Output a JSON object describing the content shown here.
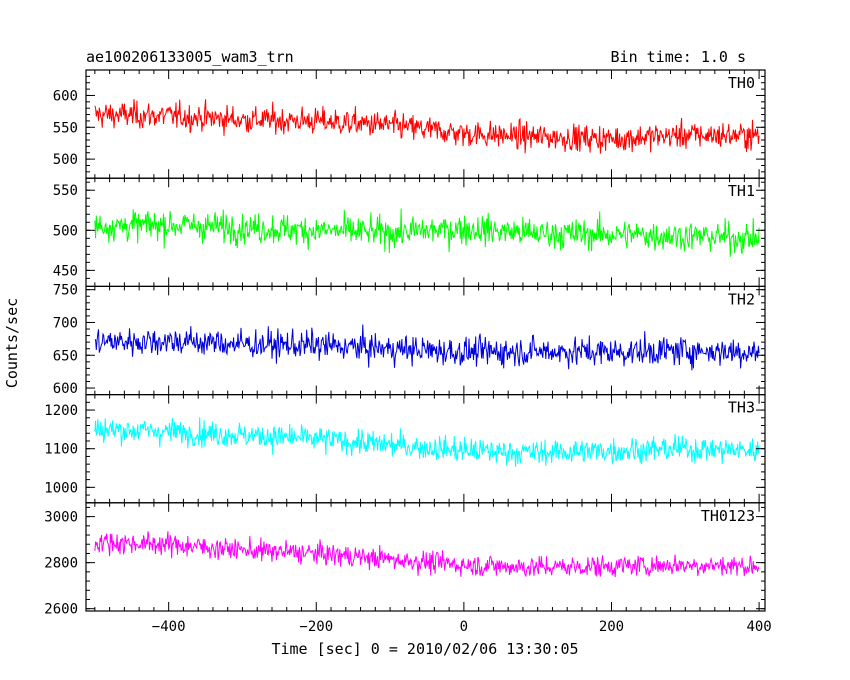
{
  "chart_data": {
    "type": "line",
    "title": "ae100206133005_wam3_trn",
    "subtitle": "Bin time: 1.0 s",
    "xlabel": "Time [sec] 0 = 2010/02/06 13:30:05",
    "ylabel": "Counts/sec",
    "xlim": [
      -512,
      408
    ],
    "x_ticks": [
      -400,
      -200,
      0,
      200,
      400
    ],
    "x_tick_labels": [
      "−400",
      "−200",
      "0",
      "200",
      "400"
    ],
    "x_range": [
      -500,
      400
    ],
    "bin_time_s": 1.0,
    "panels": [
      {
        "name": "TH0",
        "color": "#ff0000",
        "ylim": [
          470,
          640
        ],
        "y_ticks": [
          500,
          550,
          600
        ],
        "y_tick_labels": [
          "500",
          "550",
          "600"
        ],
        "trend": [
          [
            -500,
            570
          ],
          [
            -400,
            568
          ],
          [
            -300,
            562
          ],
          [
            -200,
            560
          ],
          [
            -100,
            553
          ],
          [
            0,
            540
          ],
          [
            100,
            535
          ],
          [
            200,
            532
          ],
          [
            300,
            538
          ],
          [
            400,
            537
          ]
        ],
        "noise": 27
      },
      {
        "name": "TH1",
        "color": "#00ff00",
        "ylim": [
          430,
          565
        ],
        "y_ticks": [
          450,
          500,
          550
        ],
        "y_tick_labels": [
          "450",
          "500",
          "550"
        ],
        "trend": [
          [
            -500,
            505
          ],
          [
            -400,
            507
          ],
          [
            -300,
            503
          ],
          [
            -200,
            500
          ],
          [
            -100,
            497
          ],
          [
            0,
            502
          ],
          [
            100,
            496
          ],
          [
            200,
            495
          ],
          [
            300,
            493
          ],
          [
            400,
            490
          ]
        ],
        "noise": 24
      },
      {
        "name": "TH2",
        "color": "#0000dd",
        "ylim": [
          590,
          755
        ],
        "y_ticks": [
          600,
          650,
          700,
          750
        ],
        "y_tick_labels": [
          "600",
          "650",
          "700",
          "750"
        ],
        "trend": [
          [
            -500,
            670
          ],
          [
            -400,
            672
          ],
          [
            -300,
            667
          ],
          [
            -200,
            665
          ],
          [
            -100,
            660
          ],
          [
            0,
            655
          ],
          [
            100,
            656
          ],
          [
            200,
            655
          ],
          [
            300,
            657
          ],
          [
            400,
            655
          ]
        ],
        "noise": 28
      },
      {
        "name": "TH3",
        "color": "#00ffff",
        "ylim": [
          960,
          1240
        ],
        "y_ticks": [
          1000,
          1100,
          1200
        ],
        "y_tick_labels": [
          "1000",
          "1100",
          "1200"
        ],
        "trend": [
          [
            -500,
            1150
          ],
          [
            -400,
            1145
          ],
          [
            -300,
            1135
          ],
          [
            -200,
            1125
          ],
          [
            -100,
            1110
          ],
          [
            0,
            1095
          ],
          [
            100,
            1090
          ],
          [
            200,
            1095
          ],
          [
            300,
            1100
          ],
          [
            400,
            1095
          ]
        ],
        "noise": 42
      },
      {
        "name": "TH0123",
        "color": "#ff00ff",
        "ylim": [
          2590,
          3060
        ],
        "y_ticks": [
          2600,
          2800,
          3000
        ],
        "y_tick_labels": [
          "2600",
          "2800",
          "3000"
        ],
        "trend": [
          [
            -500,
            2890
          ],
          [
            -400,
            2880
          ],
          [
            -300,
            2855
          ],
          [
            -200,
            2840
          ],
          [
            -100,
            2815
          ],
          [
            0,
            2790
          ],
          [
            100,
            2780
          ],
          [
            200,
            2785
          ],
          [
            300,
            2790
          ],
          [
            400,
            2785
          ]
        ],
        "noise": 60
      }
    ],
    "grid": false,
    "legend": "panel labels top-right"
  }
}
